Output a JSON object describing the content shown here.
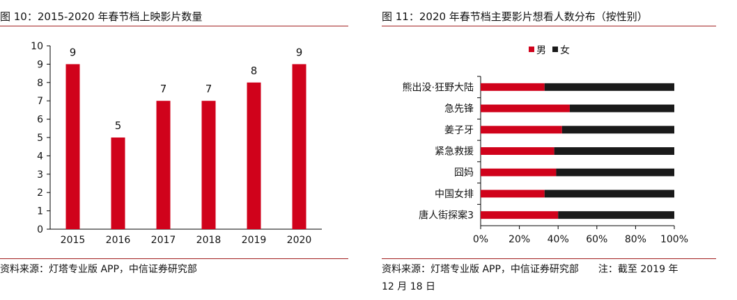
{
  "figures": [
    {
      "title": "图 10：2015-2020 年春节档上映影片数量",
      "source": "资料来源：灯塔专业版 APP，中信证券研究部"
    },
    {
      "title": "图 11：2020 年春节档主要影片想看人数分布（按性别）",
      "source_line1": "资料来源：灯塔专业版 APP，中信证券研究部　　注：截至 2019 年",
      "source_line2": "12 月 18 日"
    }
  ],
  "chart_data": [
    {
      "type": "bar",
      "categories": [
        "2015",
        "2016",
        "2017",
        "2018",
        "2019",
        "2020"
      ],
      "values": [
        9,
        5,
        7,
        7,
        8,
        9
      ],
      "data_labels": [
        "9",
        "5",
        "7",
        "7",
        "8",
        "9"
      ],
      "ylim": [
        0,
        10
      ],
      "yticks": [
        "0",
        "1",
        "2",
        "3",
        "4",
        "5",
        "6",
        "7",
        "8",
        "9",
        "10"
      ],
      "grid": false,
      "bar_color": "#d0021b"
    },
    {
      "type": "bar",
      "orientation": "horizontal",
      "stacked": true,
      "categories": [
        "熊出没·狂野大陆",
        "急先锋",
        "姜子牙",
        "紧急救援",
        "囧妈",
        "中国女排",
        "唐人街探案3"
      ],
      "series": [
        {
          "name": "男",
          "values": [
            0.33,
            0.46,
            0.42,
            0.38,
            0.39,
            0.33,
            0.4
          ],
          "color": "#d0021b"
        },
        {
          "name": "女",
          "values": [
            0.67,
            0.54,
            0.58,
            0.62,
            0.61,
            0.67,
            0.6
          ],
          "color": "#1a1a1a"
        }
      ],
      "xlim": [
        0,
        1
      ],
      "xticks": [
        "0%",
        "20%",
        "40%",
        "60%",
        "80%",
        "100%"
      ],
      "legend_position": "top",
      "grid": false
    }
  ]
}
